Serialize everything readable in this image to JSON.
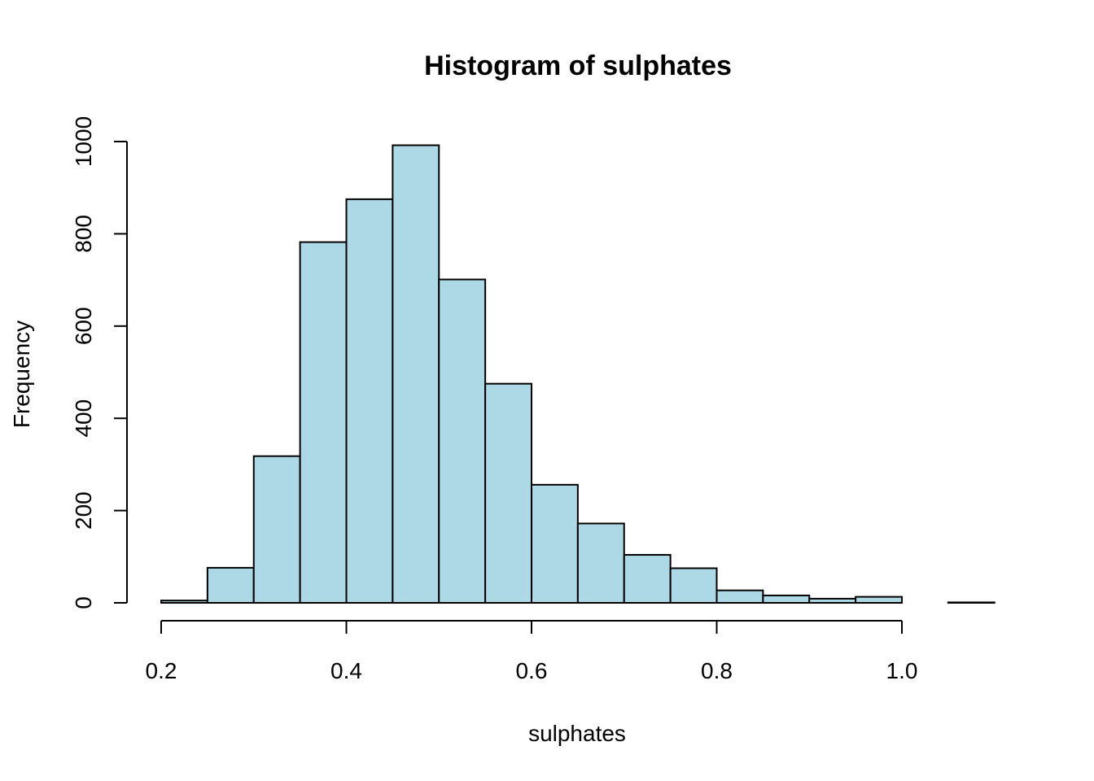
{
  "chart_data": {
    "type": "bar",
    "title": "Histogram of sulphates",
    "xlabel": "sulphates",
    "ylabel": "Frequency",
    "bar_color": "#add8e6",
    "xlim": [
      0.2,
      1.1
    ],
    "ylim": [
      0,
      1000
    ],
    "x_ticks": [
      0.2,
      0.4,
      0.6,
      0.8,
      1.0
    ],
    "x_tick_labels": [
      "0.2",
      "0.4",
      "0.6",
      "0.8",
      "1.0"
    ],
    "y_ticks": [
      0,
      200,
      400,
      600,
      800,
      1000
    ],
    "y_tick_labels": [
      "0",
      "200",
      "400",
      "600",
      "800",
      "1000"
    ],
    "bins": [
      {
        "start": 0.2,
        "end": 0.25,
        "count": 5
      },
      {
        "start": 0.25,
        "end": 0.3,
        "count": 76
      },
      {
        "start": 0.3,
        "end": 0.35,
        "count": 318
      },
      {
        "start": 0.35,
        "end": 0.4,
        "count": 782
      },
      {
        "start": 0.4,
        "end": 0.45,
        "count": 875
      },
      {
        "start": 0.45,
        "end": 0.5,
        "count": 992
      },
      {
        "start": 0.5,
        "end": 0.55,
        "count": 701
      },
      {
        "start": 0.55,
        "end": 0.6,
        "count": 475
      },
      {
        "start": 0.6,
        "end": 0.65,
        "count": 256
      },
      {
        "start": 0.65,
        "end": 0.7,
        "count": 172
      },
      {
        "start": 0.7,
        "end": 0.75,
        "count": 104
      },
      {
        "start": 0.75,
        "end": 0.8,
        "count": 75
      },
      {
        "start": 0.8,
        "end": 0.85,
        "count": 27
      },
      {
        "start": 0.85,
        "end": 0.9,
        "count": 16
      },
      {
        "start": 0.9,
        "end": 0.95,
        "count": 9
      },
      {
        "start": 0.95,
        "end": 1.0,
        "count": 13
      },
      {
        "start": 1.0,
        "end": 1.05,
        "count": 0
      },
      {
        "start": 1.05,
        "end": 1.1,
        "count": 1
      }
    ]
  }
}
